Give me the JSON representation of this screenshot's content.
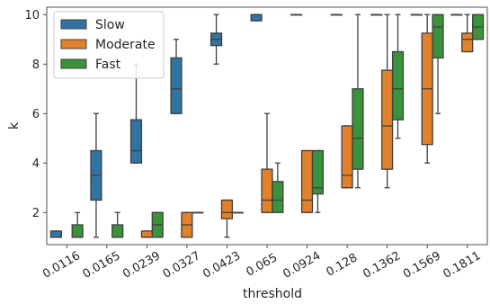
{
  "chart_data": {
    "type": "box",
    "xlabel": "threshold",
    "ylabel": "k",
    "ylim": [
      0.7,
      10.3
    ],
    "yticks": [
      2,
      4,
      6,
      8,
      10
    ],
    "categories": [
      "0.0116",
      "0.0165",
      "0.0239",
      "0.0327",
      "0.0423",
      "0.065",
      "0.0924",
      "0.128",
      "0.1362",
      "0.1569",
      "0.1811"
    ],
    "legend": {
      "position": "top-left"
    },
    "series": [
      {
        "name": "Slow",
        "color": "#3274a1",
        "boxes": [
          {
            "whislo": 1,
            "q1": 1,
            "med": 1,
            "q3": 1.25,
            "whishi": 1.25
          },
          {
            "whislo": 1,
            "q1": 2.5,
            "med": 3.5,
            "q3": 4.5,
            "whishi": 6
          },
          {
            "whislo": 4,
            "q1": 4,
            "med": 4.5,
            "q3": 5.75,
            "whishi": 8
          },
          {
            "whislo": 6,
            "q1": 6,
            "med": 7,
            "q3": 8.25,
            "whishi": 9
          },
          {
            "whislo": 8,
            "q1": 8.75,
            "med": 9,
            "q3": 9.25,
            "whishi": 10
          },
          {
            "whislo": 9.75,
            "q1": 9.75,
            "med": 10,
            "q3": 10,
            "whishi": 10
          },
          {
            "whislo": 10,
            "q1": 10,
            "med": 10,
            "q3": 10,
            "whishi": 10
          },
          {
            "whislo": 10,
            "q1": 10,
            "med": 10,
            "q3": 10,
            "whishi": 10
          },
          {
            "whislo": 10,
            "q1": 10,
            "med": 10,
            "q3": 10,
            "whishi": 10
          },
          {
            "whislo": 10,
            "q1": 10,
            "med": 10,
            "q3": 10,
            "whishi": 10
          },
          {
            "whislo": 10,
            "q1": 10,
            "med": 10,
            "q3": 10,
            "whishi": 10
          }
        ]
      },
      {
        "name": "Moderate",
        "color": "#e1812c",
        "boxes": [
          null,
          null,
          {
            "whislo": 1,
            "q1": 1,
            "med": 1,
            "q3": 1.25,
            "whishi": 1.25
          },
          {
            "whislo": 1,
            "q1": 1,
            "med": 1.5,
            "q3": 2,
            "whishi": 2
          },
          {
            "whislo": 1,
            "q1": 1.75,
            "med": 2,
            "q3": 2.5,
            "whishi": 2.5
          },
          {
            "whislo": 2,
            "q1": 2,
            "med": 2.5,
            "q3": 3.75,
            "whishi": 6
          },
          {
            "whislo": 2,
            "q1": 2,
            "med": 2.5,
            "q3": 4.5,
            "whishi": 4.5
          },
          {
            "whislo": 3,
            "q1": 3,
            "med": 3.5,
            "q3": 5.5,
            "whishi": 5.5
          },
          {
            "whislo": 3,
            "q1": 3.75,
            "med": 5.5,
            "q3": 7.75,
            "whishi": 10
          },
          {
            "whislo": 4,
            "q1": 4.75,
            "med": 7,
            "q3": 9.25,
            "whishi": 10
          },
          {
            "whislo": 8.5,
            "q1": 8.5,
            "med": 9,
            "q3": 9.25,
            "whishi": 10
          }
        ]
      },
      {
        "name": "Fast",
        "color": "#3a923a",
        "boxes": [
          {
            "whislo": 1,
            "q1": 1,
            "med": 1,
            "q3": 1.5,
            "whishi": 2
          },
          {
            "whislo": 1,
            "q1": 1,
            "med": 1,
            "q3": 1.5,
            "whishi": 2
          },
          {
            "whislo": 1,
            "q1": 1,
            "med": 1.5,
            "q3": 2,
            "whishi": 2
          },
          {
            "whislo": 2,
            "q1": 2,
            "med": 2,
            "q3": 2,
            "whishi": 2
          },
          {
            "whislo": 2,
            "q1": 2,
            "med": 2,
            "q3": 2,
            "whishi": 2
          },
          {
            "whislo": 2,
            "q1": 2,
            "med": 2.5,
            "q3": 3.25,
            "whishi": 4
          },
          {
            "whislo": 2,
            "q1": 2.75,
            "med": 3,
            "q3": 4.5,
            "whishi": 4.5
          },
          {
            "whislo": 3,
            "q1": 3.75,
            "med": 5,
            "q3": 7,
            "whishi": 10
          },
          {
            "whislo": 5,
            "q1": 5.75,
            "med": 7,
            "q3": 8.5,
            "whishi": 10
          },
          {
            "whislo": 6,
            "q1": 8.25,
            "med": 9.5,
            "q3": 10,
            "whishi": 10
          },
          {
            "whislo": 9,
            "q1": 9,
            "med": 9.5,
            "q3": 10,
            "whishi": 10
          }
        ]
      }
    ]
  }
}
